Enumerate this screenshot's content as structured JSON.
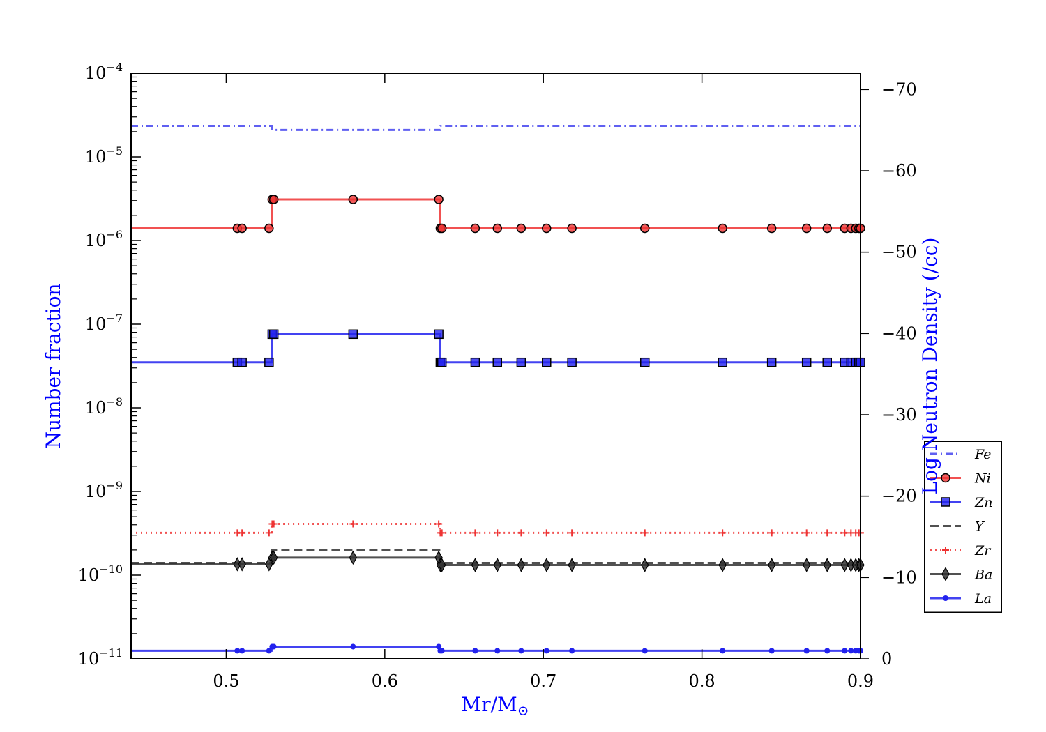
{
  "chart_data": {
    "type": "line",
    "xlabel_main": "Mr/M",
    "xlabel_sun": "⊙",
    "ylabel_left": "Number fraction",
    "ylabel_right": "Log Neutron Density (/cc)",
    "xlim": [
      0.44,
      0.9
    ],
    "ylim_left_log10": [
      -11,
      -4
    ],
    "ylim_right": [
      0,
      -72
    ],
    "x_ticks": [
      0.5,
      0.6,
      0.7,
      0.8,
      0.9
    ],
    "x_tick_labels": [
      "0.5",
      "0.6",
      "0.7",
      "0.8",
      "0.9"
    ],
    "y_left_ticks": [
      {
        "base": "10",
        "exp": "−4",
        "value": -4
      },
      {
        "base": "10",
        "exp": "−5",
        "value": -5
      },
      {
        "base": "10",
        "exp": "−6",
        "value": -6
      },
      {
        "base": "10",
        "exp": "−7",
        "value": -7
      },
      {
        "base": "10",
        "exp": "−8",
        "value": -8
      },
      {
        "base": "10",
        "exp": "−9",
        "value": -9
      },
      {
        "base": "10",
        "exp": "−10",
        "value": -10
      },
      {
        "base": "10",
        "exp": "−11",
        "value": -11
      }
    ],
    "y_right_ticks": [
      {
        "label": "−70",
        "value": -70
      },
      {
        "label": "−60",
        "value": -60
      },
      {
        "label": "−50",
        "value": -50
      },
      {
        "label": "−40",
        "value": -40
      },
      {
        "label": "−30",
        "value": -30
      },
      {
        "label": "−20",
        "value": -20
      },
      {
        "label": "−10",
        "value": -10
      },
      {
        "label": "0",
        "value": 0
      }
    ],
    "legend_position": "right, lower",
    "grid": false,
    "step_x": [
      0.44,
      0.507,
      0.51,
      0.527,
      0.529,
      0.53,
      0.58,
      0.634,
      0.635,
      0.636,
      0.657,
      0.671,
      0.686,
      0.702,
      0.718,
      0.764,
      0.813,
      0.844,
      0.866,
      0.879,
      0.89,
      0.894,
      0.897,
      0.899,
      0.9
    ],
    "series": [
      {
        "name": "Fe",
        "color": "#4444ee",
        "style": "dashdot",
        "marker": "none",
        "values": [
          2.35e-05,
          2.35e-05,
          2.35e-05,
          2.35e-05,
          2.1e-05,
          2.1e-05,
          2.1e-05,
          2.1e-05,
          2.35e-05,
          2.35e-05,
          2.35e-05,
          2.35e-05,
          2.35e-05,
          2.35e-05,
          2.35e-05,
          2.35e-05,
          2.35e-05,
          2.35e-05,
          2.35e-05,
          2.35e-05,
          2.35e-05,
          2.35e-05,
          2.35e-05,
          2.35e-05,
          2.35e-05
        ]
      },
      {
        "name": "Ni",
        "color": "#ee3333",
        "style": "solid",
        "marker": "circle",
        "values": [
          1.4e-06,
          1.4e-06,
          1.4e-06,
          1.4e-06,
          3.1e-06,
          3.1e-06,
          3.1e-06,
          3.1e-06,
          1.4e-06,
          1.4e-06,
          1.4e-06,
          1.4e-06,
          1.4e-06,
          1.4e-06,
          1.4e-06,
          1.4e-06,
          1.4e-06,
          1.4e-06,
          1.4e-06,
          1.4e-06,
          1.4e-06,
          1.4e-06,
          1.4e-06,
          1.4e-06,
          1.4e-06
        ]
      },
      {
        "name": "Zn",
        "color": "#2222ee",
        "style": "solid",
        "marker": "square",
        "values": [
          3.5e-08,
          3.5e-08,
          3.5e-08,
          3.5e-08,
          7.6e-08,
          7.6e-08,
          7.6e-08,
          7.6e-08,
          3.5e-08,
          3.5e-08,
          3.5e-08,
          3.5e-08,
          3.5e-08,
          3.5e-08,
          3.5e-08,
          3.5e-08,
          3.5e-08,
          3.5e-08,
          3.5e-08,
          3.5e-08,
          3.5e-08,
          3.5e-08,
          3.5e-08,
          3.5e-08,
          3.5e-08
        ]
      },
      {
        "name": "Y",
        "color": "#333333",
        "style": "dashed",
        "marker": "none",
        "values": [
          1.4e-10,
          1.4e-10,
          1.4e-10,
          1.4e-10,
          2e-10,
          2e-10,
          2e-10,
          2e-10,
          1.4e-10,
          1.4e-10,
          1.4e-10,
          1.4e-10,
          1.4e-10,
          1.4e-10,
          1.4e-10,
          1.4e-10,
          1.4e-10,
          1.4e-10,
          1.4e-10,
          1.4e-10,
          1.4e-10,
          1.4e-10,
          1.4e-10,
          1.4e-10,
          1.4e-10
        ]
      },
      {
        "name": "Zr",
        "color": "#ee3333",
        "style": "dotted",
        "marker": "plus",
        "values": [
          3.2e-10,
          3.2e-10,
          3.2e-10,
          3.2e-10,
          4.1e-10,
          4.1e-10,
          4.1e-10,
          4.1e-10,
          3.2e-10,
          3.2e-10,
          3.2e-10,
          3.2e-10,
          3.2e-10,
          3.2e-10,
          3.2e-10,
          3.2e-10,
          3.2e-10,
          3.2e-10,
          3.2e-10,
          3.2e-10,
          3.2e-10,
          3.2e-10,
          3.2e-10,
          3.2e-10,
          3.2e-10
        ]
      },
      {
        "name": "Ba",
        "color": "#333333",
        "style": "solid",
        "marker": "diamond",
        "values": [
          1.35e-10,
          1.35e-10,
          1.35e-10,
          1.35e-10,
          1.62e-10,
          1.62e-10,
          1.62e-10,
          1.62e-10,
          1.32e-10,
          1.32e-10,
          1.32e-10,
          1.32e-10,
          1.32e-10,
          1.32e-10,
          1.32e-10,
          1.32e-10,
          1.32e-10,
          1.32e-10,
          1.32e-10,
          1.32e-10,
          1.32e-10,
          1.32e-10,
          1.32e-10,
          1.32e-10,
          1.32e-10
        ]
      },
      {
        "name": "La",
        "color": "#2222ee",
        "style": "solid",
        "marker": "dot",
        "values": [
          1.25e-11,
          1.25e-11,
          1.25e-11,
          1.25e-11,
          1.4e-11,
          1.4e-11,
          1.4e-11,
          1.4e-11,
          1.25e-11,
          1.25e-11,
          1.25e-11,
          1.25e-11,
          1.25e-11,
          1.25e-11,
          1.25e-11,
          1.25e-11,
          1.25e-11,
          1.25e-11,
          1.25e-11,
          1.25e-11,
          1.25e-11,
          1.25e-11,
          1.25e-11,
          1.25e-11,
          1.25e-11
        ]
      }
    ]
  }
}
